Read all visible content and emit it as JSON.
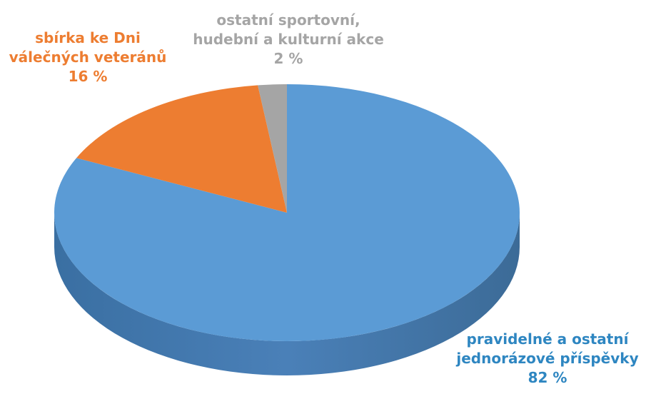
{
  "chart_data": {
    "type": "pie",
    "style": "3d",
    "title": "",
    "categories": [
      "pravidelné a ostatní jednorázové příspěvky",
      "sbírka ke Dni válečných veteránů",
      "ostatní sportovní, hudební a kulturní akce"
    ],
    "values": [
      82,
      16,
      2
    ],
    "unit": "%",
    "colors": [
      "#5B9BD5",
      "#ED7D31",
      "#A5A5A5"
    ],
    "label_colors": [
      "#2E86C1",
      "#ED7D31",
      "#A5A5A5"
    ],
    "slices": [
      {
        "lines": [
          "pravidelné a ostatní",
          "jednorázové příspěvky"
        ],
        "value_label": "82 %"
      },
      {
        "lines": [
          "sbírka ke Dni",
          "válečných veteránů"
        ],
        "value_label": "16 %"
      },
      {
        "lines": [
          "ostatní sportovní,",
          "hudební a kulturní akce"
        ],
        "value_label": "2 %"
      }
    ]
  }
}
